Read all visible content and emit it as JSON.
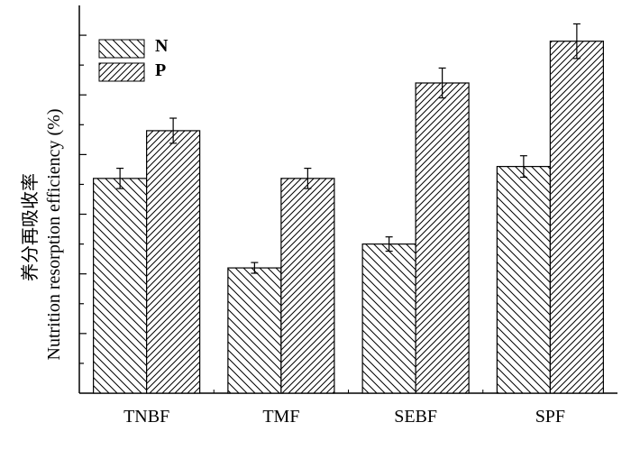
{
  "chart_data": {
    "type": "bar",
    "title": "",
    "xlabel": "",
    "ylabel_zh": "养分再吸收率",
    "ylabel": "Nutrition resorption efficiency (%)",
    "categories": [
      "TNBF",
      "TMF",
      "SEBF",
      "SPF"
    ],
    "series": [
      {
        "name": "N",
        "values": [
          36,
          21,
          25,
          38
        ],
        "errors": [
          1.7,
          0.9,
          1.2,
          1.8
        ]
      },
      {
        "name": "P",
        "values": [
          44,
          36,
          52,
          59
        ],
        "errors": [
          2.1,
          1.7,
          2.5,
          2.9
        ]
      }
    ],
    "ylim": [
      0,
      65
    ],
    "y_tick_labels_shown": false,
    "legend_position": "top-left",
    "grid": false,
    "patterns": {
      "N": "back-hatch",
      "P": "forward-hatch"
    }
  }
}
